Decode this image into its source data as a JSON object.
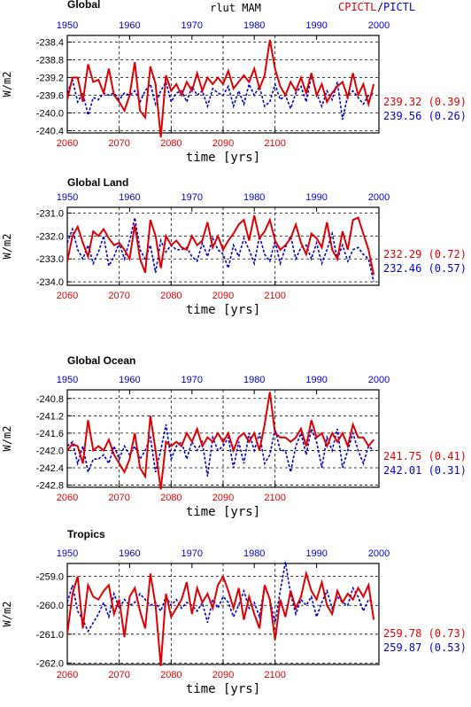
{
  "title": {
    "variable": "rlut MAM",
    "legend_red": "CPICTL",
    "legend_sep": "/",
    "legend_blue": "PICTL"
  },
  "colors": {
    "red": "#dd0000",
    "blue": "#0000cc"
  },
  "chart_data": [
    {
      "type": "line",
      "title": "Global",
      "xlabel": "time [yrs]",
      "ylabel": "W/m2",
      "x_top_ticks": [
        "1950",
        "1960",
        "1970",
        "1980",
        "1990",
        "2000"
      ],
      "x_bottom_ticks": [
        "2060",
        "2070",
        "2080",
        "2090",
        "2100"
      ],
      "xlim_bottom": [
        2060,
        2120
      ],
      "ylim": [
        -240.45,
        -238.25
      ],
      "yticks": [
        -238.4,
        -238.8,
        -239.2,
        -239.6,
        -240.0,
        -240.4
      ],
      "ytick_labels": [
        "-238.4",
        "-238.8",
        "-239.2",
        "-239.6",
        "-240.0",
        "-240.4"
      ],
      "grid": true,
      "series": [
        {
          "name": "CPICTL",
          "color": "#dd0000",
          "style": "solid",
          "x_start": 2060,
          "values": [
            -239.7,
            -239.2,
            -239.2,
            -239.75,
            -238.9,
            -239.3,
            -239.25,
            -239.55,
            -239.0,
            -239.6,
            -239.75,
            -239.95,
            -239.6,
            -238.85,
            -239.95,
            -240.1,
            -238.95,
            -239.35,
            -240.55,
            -239.15,
            -239.5,
            -239.35,
            -239.6,
            -239.3,
            -239.5,
            -239.1,
            -239.5,
            -239.2,
            -239.35,
            -239.2,
            -239.35,
            -239.05,
            -239.45,
            -239.3,
            -239.15,
            -239.3,
            -239.0,
            -239.45,
            -239.15,
            -238.35,
            -239.0,
            -239.4,
            -239.6,
            -239.3,
            -239.5,
            -239.2,
            -239.55,
            -239.1,
            -239.6,
            -239.35,
            -239.75,
            -239.55,
            -239.4,
            -239.3,
            -239.65,
            -239.1,
            -239.6,
            -239.35,
            -239.8,
            -239.35
          ]
        },
        {
          "name": "PICTL",
          "color": "#0000cc",
          "style": "dashed",
          "x_start": 2060,
          "values": [
            -239.55,
            -239.25,
            -239.75,
            -239.55,
            -240.05,
            -239.65,
            -239.7,
            -239.55,
            -239.6,
            -239.55,
            -239.7,
            -239.55,
            -239.6,
            -239.5,
            -239.75,
            -239.5,
            -239.35,
            -239.8,
            -239.5,
            -239.3,
            -239.75,
            -239.55,
            -239.5,
            -239.75,
            -239.4,
            -239.6,
            -239.5,
            -239.85,
            -239.45,
            -239.55,
            -239.6,
            -239.4,
            -239.85,
            -239.5,
            -239.8,
            -239.35,
            -239.6,
            -239.4,
            -239.85,
            -239.75,
            -239.35,
            -239.7,
            -239.6,
            -239.9,
            -239.55,
            -239.4,
            -239.75,
            -239.15,
            -239.55,
            -239.85,
            -239.5,
            -239.7,
            -239.3,
            -240.15,
            -239.6,
            -239.5,
            -239.65,
            -239.8,
            -239.6,
            -239.55
          ]
        }
      ],
      "stats": {
        "red": "239.32 (0.39)",
        "blue": "239.56 (0.26)"
      }
    },
    {
      "type": "line",
      "title": "Global Land",
      "xlabel": "time [yrs]",
      "ylabel": "W/m2",
      "x_top_ticks": [
        "1950",
        "1960",
        "1970",
        "1980",
        "1990",
        "2000"
      ],
      "x_bottom_ticks": [
        "2060",
        "2070",
        "2080",
        "2090",
        "2100"
      ],
      "xlim_bottom": [
        2060,
        2120
      ],
      "ylim": [
        -234.15,
        -230.75
      ],
      "yticks": [
        -231.0,
        -232.0,
        -233.0,
        -234.0
      ],
      "ytick_labels": [
        "-231.0",
        "-232.0",
        "-233.0",
        "-234.0"
      ],
      "grid": true,
      "series": [
        {
          "name": "CPICTL",
          "color": "#dd0000",
          "style": "solid",
          "x_start": 2060,
          "values": [
            -233.1,
            -232.0,
            -231.6,
            -232.3,
            -232.9,
            -231.8,
            -232.0,
            -231.7,
            -232.1,
            -232.4,
            -232.3,
            -232.6,
            -233.0,
            -231.5,
            -233.0,
            -233.6,
            -231.3,
            -232.0,
            -233.4,
            -232.0,
            -232.4,
            -232.2,
            -232.5,
            -232.6,
            -232.0,
            -232.4,
            -232.2,
            -231.4,
            -232.5,
            -232.0,
            -232.6,
            -232.2,
            -231.9,
            -231.5,
            -231.3,
            -232.2,
            -231.1,
            -232.1,
            -231.8,
            -231.3,
            -232.2,
            -232.6,
            -232.4,
            -232.1,
            -231.5,
            -232.3,
            -232.8,
            -231.9,
            -232.1,
            -232.5,
            -231.4,
            -232.6,
            -233.0,
            -231.8,
            -232.6,
            -231.3,
            -231.2,
            -231.9,
            -232.6,
            -233.7
          ]
        },
        {
          "name": "PICTL",
          "color": "#0000cc",
          "style": "dashed",
          "x_start": 2060,
          "values": [
            -232.3,
            -231.7,
            -232.6,
            -233.0,
            -232.4,
            -233.2,
            -232.7,
            -232.0,
            -233.3,
            -232.9,
            -232.3,
            -233.0,
            -232.2,
            -231.2,
            -232.6,
            -233.0,
            -232.4,
            -233.6,
            -232.2,
            -232.7,
            -232.4,
            -232.6,
            -232.6,
            -232.5,
            -232.9,
            -233.1,
            -232.3,
            -232.9,
            -232.1,
            -232.6,
            -232.8,
            -233.4,
            -232.4,
            -232.9,
            -232.1,
            -232.6,
            -233.2,
            -232.0,
            -232.8,
            -233.1,
            -232.2,
            -233.2,
            -232.5,
            -232.0,
            -233.0,
            -232.5,
            -232.4,
            -233.0,
            -232.3,
            -233.2,
            -232.6,
            -231.9,
            -233.0,
            -232.4,
            -233.1,
            -232.6,
            -232.5,
            -232.8,
            -233.0,
            -234.0
          ]
        }
      ],
      "stats": {
        "red": "232.29 (0.72)",
        "blue": "232.46 (0.57)"
      }
    },
    {
      "type": "line",
      "title": "Global Ocean",
      "xlabel": "time [yrs]",
      "ylabel": "W/m2",
      "x_top_ticks": [
        "1950",
        "1960",
        "1970",
        "1980",
        "1990",
        "2000"
      ],
      "x_bottom_ticks": [
        "2060",
        "2070",
        "2080",
        "2090",
        "2100"
      ],
      "xlim_bottom": [
        2060,
        2120
      ],
      "ylim": [
        -242.85,
        -240.6
      ],
      "yticks": [
        -240.8,
        -241.2,
        -241.6,
        -242.0,
        -242.4,
        -242.8
      ],
      "ytick_labels": [
        "-240.8",
        "-241.2",
        "-241.6",
        "-242.0",
        "-242.4",
        "-242.8"
      ],
      "grid": true,
      "series": [
        {
          "name": "CPICTL",
          "color": "#dd0000",
          "style": "solid",
          "x_start": 2060,
          "values": [
            -242.0,
            -241.85,
            -241.9,
            -242.3,
            -241.3,
            -242.0,
            -241.9,
            -242.0,
            -241.75,
            -242.1,
            -242.3,
            -242.5,
            -242.2,
            -241.6,
            -242.4,
            -242.6,
            -241.2,
            -242.0,
            -242.9,
            -241.8,
            -241.9,
            -241.8,
            -241.9,
            -241.6,
            -241.8,
            -241.5,
            -241.9,
            -241.7,
            -241.8,
            -241.6,
            -241.8,
            -241.6,
            -242.0,
            -241.7,
            -241.6,
            -241.8,
            -241.6,
            -242.0,
            -241.4,
            -240.65,
            -241.6,
            -241.7,
            -241.7,
            -241.8,
            -241.7,
            -241.5,
            -241.9,
            -241.3,
            -241.7,
            -241.6,
            -241.9,
            -241.6,
            -241.8,
            -241.6,
            -241.9,
            -241.4,
            -241.7,
            -241.7,
            -241.9,
            -241.75
          ]
        },
        {
          "name": "PICTL",
          "color": "#0000cc",
          "style": "dashed",
          "x_start": 2060,
          "values": [
            -241.9,
            -241.8,
            -242.3,
            -241.9,
            -242.5,
            -242.2,
            -242.2,
            -242.1,
            -242.3,
            -241.9,
            -242.2,
            -241.9,
            -242.1,
            -241.9,
            -242.2,
            -242.0,
            -241.7,
            -242.5,
            -242.0,
            -241.4,
            -242.2,
            -241.9,
            -241.8,
            -242.2,
            -241.8,
            -242.0,
            -241.8,
            -242.6,
            -241.7,
            -242.0,
            -241.9,
            -241.7,
            -242.4,
            -241.8,
            -242.3,
            -241.6,
            -242.0,
            -241.6,
            -242.3,
            -242.1,
            -241.5,
            -242.0,
            -242.0,
            -242.5,
            -241.9,
            -241.6,
            -242.1,
            -241.5,
            -241.8,
            -242.4,
            -241.7,
            -242.0,
            -241.5,
            -242.4,
            -242.0,
            -241.6,
            -242.0,
            -242.3,
            -241.9,
            -242.0
          ]
        }
      ],
      "stats": {
        "red": "241.75 (0.41)",
        "blue": "242.01 (0.31)"
      }
    },
    {
      "type": "line",
      "title": "Tropics",
      "xlabel": "time [yrs]",
      "ylabel": "W/m2",
      "x_top_ticks": [
        "1950",
        "1960",
        "1970",
        "1980",
        "1990",
        "2000"
      ],
      "x_bottom_ticks": [
        "2060",
        "2070",
        "2080",
        "2090",
        "2100"
      ],
      "xlim_bottom": [
        2060,
        2120
      ],
      "ylim": [
        -262.05,
        -258.55
      ],
      "yticks": [
        -259.0,
        -260.0,
        -261.0,
        -262.0
      ],
      "ytick_labels": [
        "-259.0",
        "-260.0",
        "-261.0",
        "-262.0"
      ],
      "grid": true,
      "series": [
        {
          "name": "CPICTL",
          "color": "#dd0000",
          "style": "solid",
          "x_start": 2060,
          "values": [
            -261.0,
            -259.6,
            -259.0,
            -260.8,
            -259.3,
            -259.7,
            -259.8,
            -259.5,
            -259.3,
            -260.3,
            -259.8,
            -261.1,
            -259.7,
            -259.4,
            -260.2,
            -260.8,
            -258.9,
            -260.0,
            -262.1,
            -259.6,
            -260.4,
            -260.1,
            -259.8,
            -259.2,
            -260.3,
            -259.4,
            -259.9,
            -259.6,
            -260.1,
            -259.3,
            -259.0,
            -259.5,
            -260.1,
            -259.4,
            -260.5,
            -259.7,
            -260.3,
            -260.8,
            -259.3,
            -259.8,
            -261.2,
            -259.8,
            -260.4,
            -259.5,
            -260.1,
            -259.7,
            -258.9,
            -259.5,
            -259.8,
            -259.2,
            -260.0,
            -260.3,
            -259.5,
            -259.9,
            -259.6,
            -259.8,
            -259.4,
            -259.7,
            -259.3,
            -260.5
          ]
        },
        {
          "name": "PICTL",
          "color": "#0000cc",
          "style": "dashed",
          "x_start": 2060,
          "values": [
            -259.9,
            -259.3,
            -260.2,
            -260.5,
            -260.9,
            -260.6,
            -260.3,
            -259.9,
            -260.4,
            -259.6,
            -260.1,
            -259.8,
            -260.0,
            -259.9,
            -259.6,
            -259.8,
            -260.0,
            -259.9,
            -260.2,
            -259.7,
            -260.0,
            -259.8,
            -260.1,
            -259.9,
            -260.0,
            -260.2,
            -259.9,
            -260.6,
            -259.8,
            -260.1,
            -259.7,
            -259.9,
            -260.4,
            -260.0,
            -259.5,
            -260.1,
            -259.9,
            -260.4,
            -259.3,
            -259.8,
            -260.6,
            -259.5,
            -258.5,
            -259.6,
            -260.3,
            -259.8,
            -260.0,
            -259.7,
            -260.4,
            -259.9,
            -259.5,
            -260.1,
            -259.7,
            -259.9,
            -260.0,
            -259.4,
            -259.7,
            -260.2,
            -259.8,
            -259.9
          ]
        }
      ],
      "stats": {
        "red": "259.78 (0.73)",
        "blue": "259.87 (0.53)"
      }
    }
  ]
}
